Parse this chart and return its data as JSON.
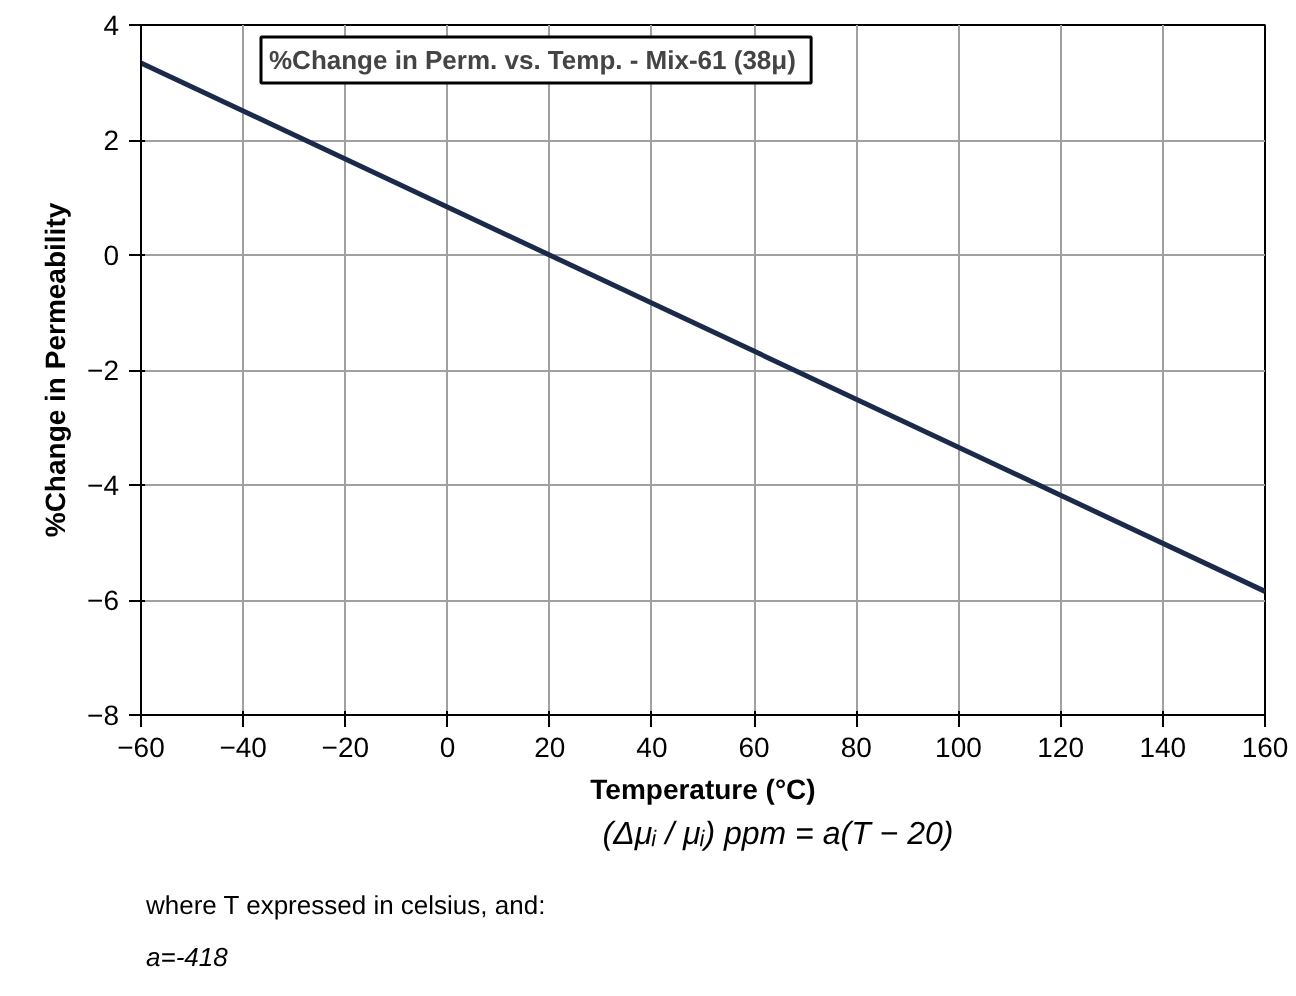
{
  "chart_data": {
    "type": "line",
    "title": "%Change in Perm. vs. Temp. - Mix-61  (38μ)",
    "xlabel": "Temperature (°C)",
    "ylabel": "%Change in Permeability",
    "x": [
      -60,
      160
    ],
    "series": [
      {
        "color": "#1b2a4a",
        "values": [
          3.34,
          -5.85
        ]
      }
    ],
    "xlim": [
      -60,
      160
    ],
    "xticks": [
      -60,
      -40,
      -20,
      0,
      20,
      40,
      60,
      80,
      100,
      120,
      140,
      160
    ],
    "ylim": [
      -8,
      4
    ],
    "yticks": [
      -8,
      -6,
      -4,
      -2,
      0,
      2,
      4
    ],
    "grid": true,
    "marker": "none",
    "line_style": "solid",
    "annotations": [
      "(Δμᵢ / μᵢ) ppm = a(T − 20)",
      "where T expressed in celsius, and:",
      "a=-418"
    ]
  }
}
